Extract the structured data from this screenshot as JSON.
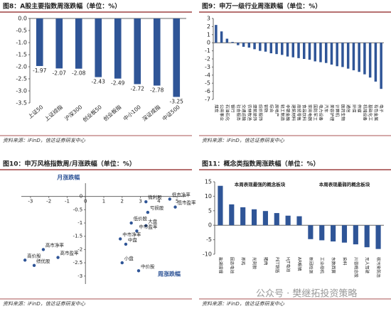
{
  "chart_data": [
    {
      "type": "bar",
      "title": "图8：A股主要指数周涨跌幅（单位：%）",
      "source": "资料来源：iFinD，信达证券研发中心",
      "categories": [
        "上证50",
        "上证综指",
        "沪深300",
        "创业板50",
        "创业板指",
        "中小100",
        "深证成指",
        "中证500"
      ],
      "values": [
        -1.97,
        -2.07,
        -2.08,
        -2.43,
        -2.49,
        -2.72,
        -2.78,
        -3.25
      ],
      "color": "#2f5597",
      "ylim": [
        -3.5,
        0
      ],
      "yticks": [
        {
          "value": 0,
          "label": "0.0"
        },
        -0.5,
        {
          "value": -1,
          "label": "-1.0"
        },
        -1.5,
        {
          "value": -2,
          "label": "-2.0"
        },
        -2.5,
        {
          "value": -3,
          "label": "-3.0"
        },
        -3.5
      ]
    },
    {
      "type": "bar",
      "title": "图9：申万一级行业周涨跌幅（单位：%）",
      "source": "资料来源：iFinD，信达证券研发中心",
      "categories": [
        "煤炭",
        "公用事业",
        "石油石化",
        "银行",
        "社会服务",
        "交通运输",
        "农林牧渔",
        "建筑装饰",
        "纺织服饰",
        "钢铁",
        "综合",
        "房地产",
        "轻工制造",
        "非银金融",
        "建筑材料",
        "商贸零售",
        "食品饮料",
        "家用电器",
        "国防军工",
        "电力设备",
        "汽车",
        "美容护理",
        "计算机",
        "医药生物",
        "通信",
        "环保",
        "传媒",
        "机械设备",
        "基础化工",
        "有色金属",
        "电子"
      ],
      "values": [
        2.2,
        1.4,
        0.5,
        0.1,
        -0.3,
        -0.5,
        -0.6,
        -0.8,
        -1.0,
        -1.1,
        -1.3,
        -1.4,
        -1.5,
        -1.7,
        -1.8,
        -1.9,
        -2.0,
        -2.1,
        -2.3,
        -2.4,
        -2.5,
        -2.7,
        -2.9,
        -3.0,
        -3.2,
        -3.4,
        -3.6,
        -3.9,
        -4.3,
        -4.8,
        -5.7
      ],
      "color": "#2f5597",
      "ylim": [
        -7,
        3
      ],
      "yticks": [
        3,
        2,
        1,
        0,
        -1,
        -2,
        -3,
        -4,
        -5,
        -6,
        -7
      ]
    },
    {
      "type": "scatter",
      "title": "图10：申万风格指数周/月涨跌幅（单位：%）",
      "source": "资料来源：iFinD，信达证券研发中心",
      "x_label": "周涨跌幅",
      "y_label": "月涨跌幅",
      "color": "#2f5597",
      "points": [
        {
          "name": "低市净率",
          "x": 4.6,
          "y": -0.1
        },
        {
          "name": "低市盈率",
          "x": 4.9,
          "y": -0.4
        },
        {
          "name": "微利股",
          "x": 3.3,
          "y": -0.2
        },
        {
          "name": "亏损股",
          "x": 3.4,
          "y": -0.6
        },
        {
          "name": "大盘",
          "x": 3.3,
          "y": -1.1
        },
        {
          "name": "低价股",
          "x": 2.5,
          "y": -1.0
        },
        {
          "name": "中市盈率",
          "x": 2.8,
          "y": -1.3
        },
        {
          "name": "中市净率",
          "x": 1.9,
          "y": -1.6
        },
        {
          "name": "中盘",
          "x": 2.2,
          "y": -1.8
        },
        {
          "name": "高市净率",
          "x": -2.3,
          "y": -2.0
        },
        {
          "name": "高市盈率",
          "x": -1.5,
          "y": -2.3
        },
        {
          "name": "小盘",
          "x": 2.0,
          "y": -2.5
        },
        {
          "name": "高价股",
          "x": -3.3,
          "y": -2.4
        },
        {
          "name": "绩优股",
          "x": -2.8,
          "y": -2.6
        },
        {
          "name": "中价股",
          "x": 2.9,
          "y": -2.8
        }
      ],
      "xlim": [
        -3.5,
        5.5
      ],
      "xticks": [
        -3,
        -2,
        -1,
        0,
        1,
        2,
        3,
        4,
        5
      ],
      "ylim": [
        -3.3,
        0.5
      ],
      "yticks": [
        0,
        -0.5,
        -1,
        -1.5,
        -2,
        -2.5,
        -3
      ]
    },
    {
      "type": "bar",
      "title": "图11：概念类指数周涨跌幅（单位：%）",
      "source": "资料来源：iFinD，信达证券研发中心",
      "color": "#2f5597",
      "groups": [
        {
          "name": "本周表现最强的概念板块",
          "categories": [
            "盐湖提锂",
            "固态电池",
            "养鸡",
            "光刻胶",
            "猪肉",
            "PET铜箔",
            "HJT电池",
            "AR眼镜"
          ],
          "values": [
            13.6,
            7.2,
            6.2,
            5.5,
            4.9,
            4.2,
            3.3,
            3.1
          ]
        },
        {
          "name": "本周表现最弱的概念板块",
          "categories": [
            "新冠检测",
            "工业母机",
            "东数西算",
            "染料",
            "川普概念股",
            "无人驾驶",
            "核污染防治"
          ],
          "values": [
            -4.8,
            -5.2,
            -5.6,
            -6.0,
            -6.6,
            -7.6,
            -8.2
          ]
        }
      ],
      "ylim": [
        -10,
        15
      ],
      "yticks": [
        15,
        10,
        5,
        0,
        -5,
        -10
      ]
    }
  ],
  "watermark": "公众号 · 樊继拓投资策略"
}
